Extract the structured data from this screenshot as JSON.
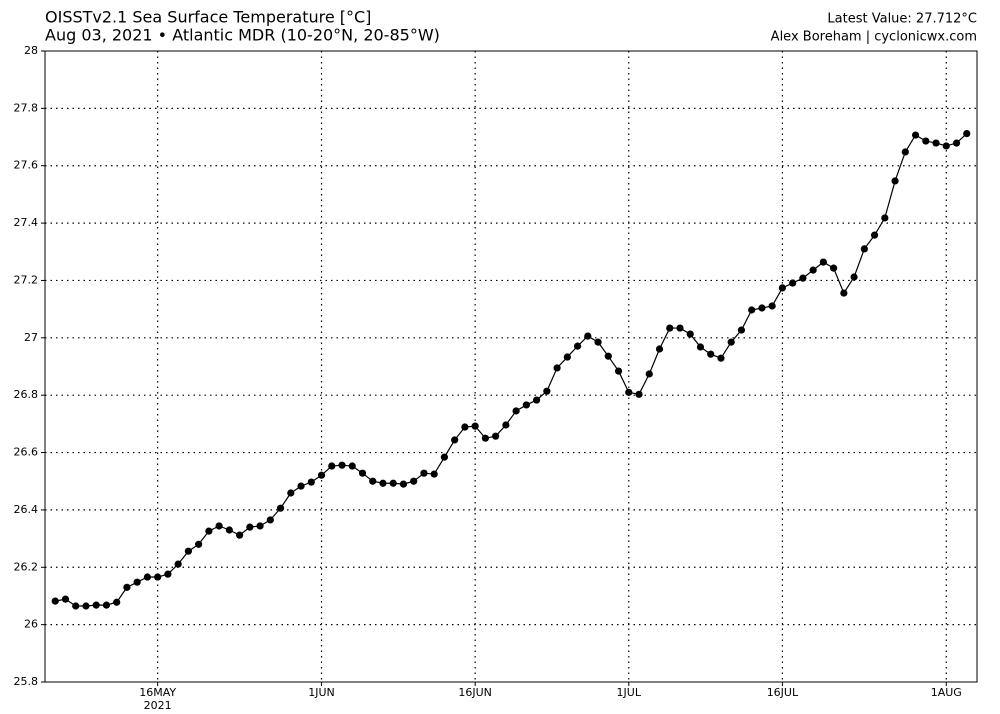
{
  "chart_data": {
    "type": "line",
    "title": "OISSTv2.1 Sea Surface Temperature [°C]",
    "subtitle": "Aug 03, 2021 • Atlantic MDR (10-20°N, 20-85°W)",
    "annotations": [
      "Latest Value: 27.712°C",
      "Alex Boreham | cyclonicwx.com"
    ],
    "x_year_label": "2021",
    "x": [
      "2021-05-06",
      "2021-05-07",
      "2021-05-08",
      "2021-05-09",
      "2021-05-10",
      "2021-05-11",
      "2021-05-12",
      "2021-05-13",
      "2021-05-14",
      "2021-05-15",
      "2021-05-16",
      "2021-05-17",
      "2021-05-18",
      "2021-05-19",
      "2021-05-20",
      "2021-05-21",
      "2021-05-22",
      "2021-05-23",
      "2021-05-24",
      "2021-05-25",
      "2021-05-26",
      "2021-05-27",
      "2021-05-28",
      "2021-05-29",
      "2021-05-30",
      "2021-05-31",
      "2021-06-01",
      "2021-06-02",
      "2021-06-03",
      "2021-06-04",
      "2021-06-05",
      "2021-06-06",
      "2021-06-07",
      "2021-06-08",
      "2021-06-09",
      "2021-06-10",
      "2021-06-11",
      "2021-06-12",
      "2021-06-13",
      "2021-06-14",
      "2021-06-15",
      "2021-06-16",
      "2021-06-17",
      "2021-06-18",
      "2021-06-19",
      "2021-06-20",
      "2021-06-21",
      "2021-06-22",
      "2021-06-23",
      "2021-06-24",
      "2021-06-25",
      "2021-06-26",
      "2021-06-27",
      "2021-06-28",
      "2021-06-29",
      "2021-06-30",
      "2021-07-01",
      "2021-07-02",
      "2021-07-03",
      "2021-07-04",
      "2021-07-05",
      "2021-07-06",
      "2021-07-07",
      "2021-07-08",
      "2021-07-09",
      "2021-07-10",
      "2021-07-11",
      "2021-07-12",
      "2021-07-13",
      "2021-07-14",
      "2021-07-15",
      "2021-07-16",
      "2021-07-17",
      "2021-07-18",
      "2021-07-19",
      "2021-07-20",
      "2021-07-21",
      "2021-07-22",
      "2021-07-23",
      "2021-07-24",
      "2021-07-25",
      "2021-07-26",
      "2021-07-27",
      "2021-07-28",
      "2021-07-29",
      "2021-07-30",
      "2021-07-31",
      "2021-08-01",
      "2021-08-02",
      "2021-08-03"
    ],
    "values": [
      26.082,
      26.089,
      26.065,
      26.065,
      26.068,
      26.068,
      26.078,
      26.13,
      26.148,
      26.166,
      26.166,
      26.176,
      26.211,
      26.256,
      26.28,
      26.326,
      26.344,
      26.33,
      26.312,
      26.34,
      26.344,
      26.365,
      26.406,
      26.459,
      26.483,
      26.497,
      26.521,
      26.553,
      26.556,
      26.553,
      26.528,
      26.5,
      26.493,
      26.493,
      26.49,
      26.5,
      26.528,
      26.525,
      26.584,
      26.644,
      26.689,
      26.692,
      26.65,
      26.657,
      26.696,
      26.745,
      26.766,
      26.783,
      26.814,
      26.895,
      26.933,
      26.971,
      27.006,
      26.985,
      26.936,
      26.884,
      26.81,
      26.803,
      26.874,
      26.961,
      27.034,
      27.034,
      27.013,
      26.968,
      26.943,
      26.929,
      26.985,
      27.027,
      27.097,
      27.104,
      27.111,
      27.174,
      27.191,
      27.208,
      27.236,
      27.264,
      27.243,
      27.156,
      27.212,
      27.31,
      27.358,
      27.418,
      27.547,
      27.648,
      27.707,
      27.686,
      27.679,
      27.669,
      27.679,
      27.712
    ],
    "color": "#000000",
    "xlim": [
      "2021-05-05",
      "2021-08-04"
    ],
    "xticks": [
      {
        "value": "2021-05-16",
        "label": "16MAY"
      },
      {
        "value": "2021-06-01",
        "label": "1JUN"
      },
      {
        "value": "2021-06-16",
        "label": "16JUN"
      },
      {
        "value": "2021-07-01",
        "label": "1JUL"
      },
      {
        "value": "2021-07-16",
        "label": "16JUL"
      },
      {
        "value": "2021-08-01",
        "label": "1AUG"
      }
    ],
    "ylim": [
      25.8,
      28
    ],
    "yticks": [
      25.8,
      26,
      26.2,
      26.4,
      26.6,
      26.8,
      27,
      27.2,
      27.4,
      27.6,
      27.8,
      28
    ],
    "grid": true
  }
}
